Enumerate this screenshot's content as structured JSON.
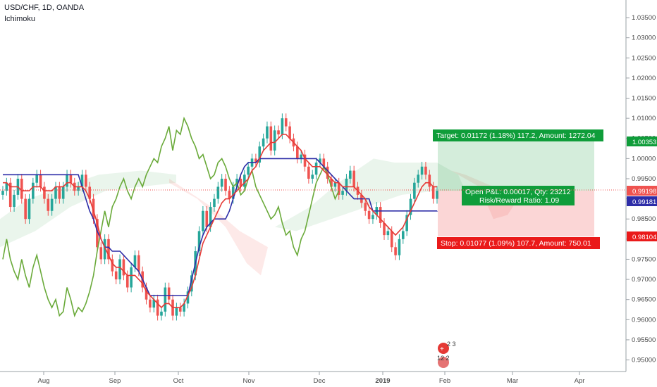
{
  "header": {
    "symbol": "USD/CHF, 1D, OANDA",
    "indicator": "Ichimoku"
  },
  "price_axis": {
    "ticks": [
      "1.03500",
      "1.03000",
      "1.02500",
      "1.02000",
      "1.01500",
      "1.01000",
      "1.00500",
      "1.00000",
      "0.99500",
      "0.99000",
      "0.98500",
      "0.98000",
      "0.97500",
      "0.97000",
      "0.96500",
      "0.96000",
      "0.95500",
      "0.95000"
    ]
  },
  "time_axis": {
    "labels": [
      "Aug",
      "Sep",
      "Oct",
      "Nov",
      "Dec",
      "2019",
      "Feb",
      "Mar",
      "Apr"
    ]
  },
  "position": {
    "target_label": "Target: 0.01172 (1.18%) 117.2, Amount: 1272.04",
    "stop_label": "Stop: 0.01077 (1.09%) 107.7, Amount: 750.01",
    "pnl_label": "Open P&L: 0.00017, Qty: 23212",
    "rr_label": "Risk/Reward Ratio: 1.09"
  },
  "price_tags": {
    "target": "1.00353",
    "current": "0.99198",
    "base": "0.99181",
    "stop": "0.98104"
  },
  "event_markers": {
    "top": "2 3",
    "bottom": "12 2"
  },
  "colors": {
    "up": "#26a69a",
    "down": "#ef5350",
    "tenkan": "#e53935",
    "kijun": "#2d2da8",
    "lagging": "#6aaa3a",
    "target": "#0f9d3a",
    "stop": "#ea1a1a"
  },
  "chart_data": {
    "type": "candlestick",
    "symbol": "USD/CHF",
    "interval": "1D",
    "y_range": [
      0.948,
      1.0385
    ],
    "x_months": [
      "Aug",
      "Sep",
      "Oct",
      "Nov",
      "Dec",
      "2019",
      "Feb",
      "Mar",
      "Apr"
    ],
    "closes": [
      0.992,
      0.994,
      0.988,
      0.991,
      0.995,
      0.99,
      0.985,
      0.99,
      0.994,
      0.996,
      0.993,
      0.99,
      0.987,
      0.99,
      0.993,
      0.99,
      0.993,
      0.996,
      0.994,
      0.992,
      0.993,
      0.996,
      0.993,
      0.99,
      0.985,
      0.978,
      0.975,
      0.98,
      0.975,
      0.972,
      0.97,
      0.975,
      0.971,
      0.968,
      0.973,
      0.976,
      0.972,
      0.968,
      0.965,
      0.963,
      0.965,
      0.961,
      0.962,
      0.968,
      0.965,
      0.961,
      0.963,
      0.962,
      0.964,
      0.967,
      0.971,
      0.977,
      0.982,
      0.987,
      0.983,
      0.988,
      0.99,
      0.993,
      0.995,
      0.992,
      0.99,
      0.993,
      0.995,
      0.993,
      0.996,
      0.998,
      1.0,
      0.999,
      1.003,
      1.005,
      1.008,
      1.002,
      1.007,
      1.006,
      1.01,
      1.008,
      1.005,
      1.003,
      1.0,
      1.001,
      0.998,
      0.995,
      0.996,
      0.999,
      1.0,
      0.998,
      0.995,
      0.993,
      0.994,
      0.991,
      0.992,
      0.995,
      0.997,
      0.993,
      0.991,
      0.989,
      0.987,
      0.985,
      0.986,
      0.988,
      0.984,
      0.981,
      0.982,
      0.978,
      0.976,
      0.98,
      0.982,
      0.986,
      0.99,
      0.994,
      0.996,
      0.998,
      0.996,
      0.993,
      0.99,
      0.992
    ],
    "tenkan": [
      0.994,
      0.994,
      0.993,
      0.993,
      0.993,
      0.992,
      0.992,
      0.992,
      0.993,
      0.993,
      0.993,
      0.992,
      0.992,
      0.992,
      0.993,
      0.993,
      0.993,
      0.994,
      0.994,
      0.993,
      0.993,
      0.993,
      0.992,
      0.99,
      0.987,
      0.984,
      0.98,
      0.978,
      0.976,
      0.974,
      0.973,
      0.973,
      0.972,
      0.971,
      0.971,
      0.971,
      0.97,
      0.969,
      0.967,
      0.966,
      0.965,
      0.964,
      0.963,
      0.964,
      0.964,
      0.963,
      0.963,
      0.963,
      0.964,
      0.966,
      0.968,
      0.971,
      0.975,
      0.979,
      0.981,
      0.983,
      0.985,
      0.987,
      0.989,
      0.99,
      0.99,
      0.991,
      0.992,
      0.993,
      0.994,
      0.995,
      0.997,
      0.998,
      1.0,
      1.002,
      1.003,
      1.004,
      1.004,
      1.005,
      1.006,
      1.006,
      1.005,
      1.004,
      1.003,
      1.002,
      1.0,
      0.999,
      0.998,
      0.998,
      0.998,
      0.997,
      0.996,
      0.995,
      0.994,
      0.994,
      0.993,
      0.993,
      0.993,
      0.993,
      0.992,
      0.991,
      0.99,
      0.988,
      0.987,
      0.986,
      0.985,
      0.984,
      0.983,
      0.982,
      0.981,
      0.982,
      0.983,
      0.985,
      0.987,
      0.989,
      0.991,
      0.993,
      0.994,
      0.994,
      0.993,
      0.993
    ],
    "kijun": [
      0.996,
      0.996,
      0.996,
      0.996,
      0.996,
      0.996,
      0.996,
      0.996,
      0.996,
      0.996,
      0.996,
      0.996,
      0.996,
      0.996,
      0.996,
      0.996,
      0.996,
      0.996,
      0.996,
      0.996,
      0.996,
      0.993,
      0.99,
      0.987,
      0.985,
      0.982,
      0.98,
      0.978,
      0.978,
      0.977,
      0.977,
      0.977,
      0.976,
      0.975,
      0.974,
      0.973,
      0.972,
      0.97,
      0.968,
      0.966,
      0.966,
      0.966,
      0.966,
      0.966,
      0.966,
      0.966,
      0.966,
      0.966,
      0.966,
      0.966,
      0.97,
      0.974,
      0.978,
      0.981,
      0.983,
      0.984,
      0.985,
      0.985,
      0.985,
      0.985,
      0.987,
      0.99,
      0.993,
      0.996,
      0.998,
      0.999,
      0.999,
      0.999,
      1.0,
      1.0,
      1.0,
      1.0,
      1.0,
      1.0,
      1.0,
      1.0,
      1.0,
      1.0,
      1.0,
      1.0,
      1.0,
      1.0,
      1.0,
      1.0,
      0.999,
      0.998,
      0.997,
      0.996,
      0.995,
      0.994,
      0.993,
      0.992,
      0.991,
      0.99,
      0.99,
      0.99,
      0.99,
      0.99,
      0.987,
      0.987,
      0.987,
      0.987,
      0.987,
      0.987,
      0.987,
      0.987,
      0.987,
      0.987,
      0.987,
      0.987,
      0.987,
      0.987,
      0.987,
      0.987,
      0.987,
      0.987
    ]
  }
}
